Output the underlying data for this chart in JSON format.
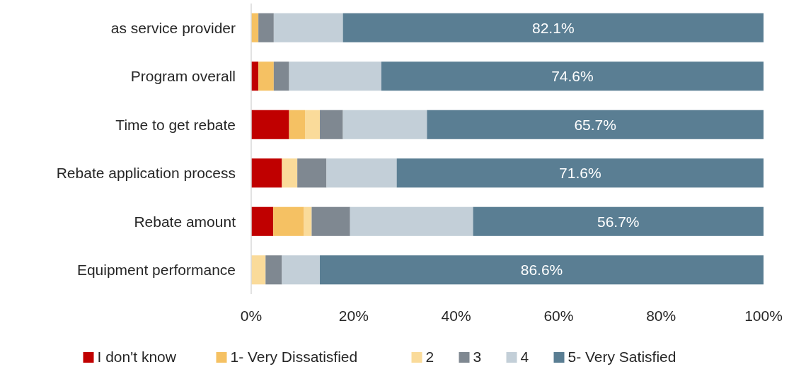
{
  "chart_data": {
    "type": "bar",
    "orientation": "horizontal",
    "stacked": true,
    "categories": [
      "as service provider",
      "Program overall",
      "Time to get rebate",
      "Rebate application process",
      "Rebate amount",
      "Equipment performance"
    ],
    "series": [
      {
        "name": "I don't know",
        "color": "#c00000",
        "values": [
          0,
          1.4,
          7.4,
          6.0,
          4.3,
          0
        ]
      },
      {
        "name": "1- Very Dissatisfied",
        "color": "#f5c163",
        "values": [
          1.4,
          3.0,
          3.1,
          0,
          6.0,
          0
        ]
      },
      {
        "name": "2",
        "color": "#fadb9a",
        "values": [
          0,
          0,
          2.9,
          3.0,
          1.5,
          2.8
        ]
      },
      {
        "name": "3",
        "color": "#7f8891",
        "values": [
          3.0,
          3.0,
          4.5,
          5.7,
          7.5,
          3.2
        ]
      },
      {
        "name": "4",
        "color": "#c3cfd8",
        "values": [
          13.5,
          18.0,
          16.4,
          13.7,
          24.0,
          7.4
        ]
      },
      {
        "name": "5- Very Satisfied",
        "color": "#5a7e93",
        "values": [
          82.1,
          74.6,
          65.7,
          71.6,
          56.7,
          86.6
        ],
        "value_labels": [
          "82.1%",
          "74.6%",
          "65.7%",
          "71.6%",
          "56.7%",
          "86.6%"
        ]
      }
    ],
    "xlim": [
      0,
      100
    ],
    "xticks": [
      {
        "value": 0,
        "label": "0%"
      },
      {
        "value": 20,
        "label": "20%"
      },
      {
        "value": 40,
        "label": "40%"
      },
      {
        "value": 60,
        "label": "60%"
      },
      {
        "value": 80,
        "label": "80%"
      },
      {
        "value": 100,
        "label": "100%"
      }
    ],
    "grid": false,
    "legend": "bottom"
  }
}
